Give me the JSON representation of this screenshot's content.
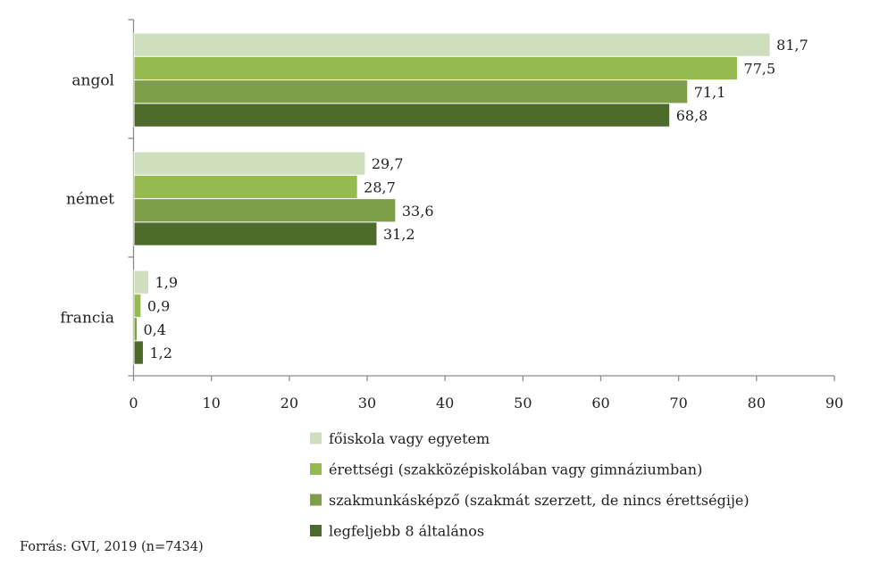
{
  "chart_data": {
    "type": "bar",
    "orientation": "horizontal",
    "categories": [
      "angol",
      "német",
      "francia"
    ],
    "series": [
      {
        "name": "főiskola vagy egyetem",
        "color": "#cfdfbd",
        "values": [
          81.7,
          29.7,
          1.9
        ],
        "labels": [
          "81,7",
          "29,7",
          "1,9"
        ]
      },
      {
        "name": "érettségi (szakközépiskolában vagy gimnáziumban)",
        "color": "#95bb50",
        "values": [
          77.5,
          28.7,
          0.9
        ],
        "labels": [
          "77,5",
          "28,7",
          "0,9"
        ]
      },
      {
        "name": "szakmunkásképző (szakmát szerzett, de nincs érettségije)",
        "color": "#7f9e48",
        "values": [
          71.1,
          33.6,
          0.4
        ],
        "labels": [
          "71,1",
          "33,6",
          "0,4"
        ]
      },
      {
        "name": "legfeljebb 8 általános",
        "color": "#4c6b2a",
        "values": [
          68.8,
          31.2,
          1.2
        ],
        "labels": [
          "68,8",
          "31,2",
          "1,2"
        ]
      }
    ],
    "x_ticks": [
      "0",
      "10",
      "20",
      "30",
      "40",
      "50",
      "60",
      "70",
      "80",
      "90"
    ],
    "xlim": [
      0,
      90
    ],
    "grid": false,
    "legend_position": "bottom",
    "source": "Forrás: GVI, 2019 (n=7434)"
  }
}
